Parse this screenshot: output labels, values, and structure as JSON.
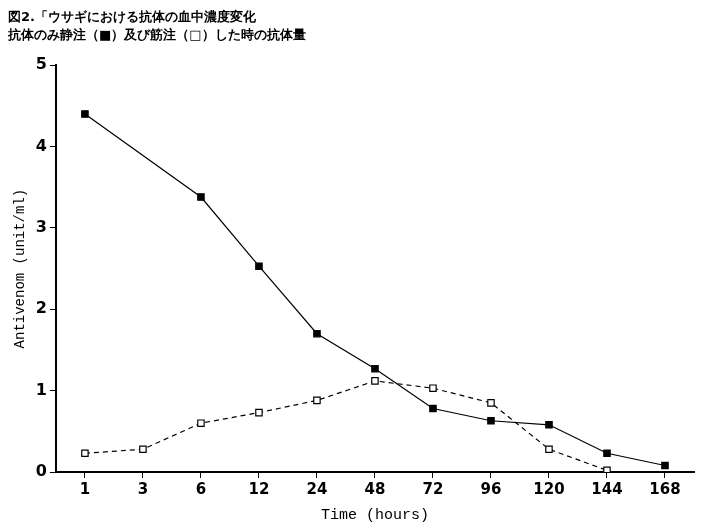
{
  "chart_data": {
    "type": "line",
    "title": "図2.「ウサギにおける抗体の血中濃度変化",
    "subtitle": "抗体のみ静注（■）及び筋注（□）した時の抗体量",
    "x_label": "Time (hours)",
    "y_label": "Antivenom (unit/ml)",
    "categories": [
      "1",
      "3",
      "6",
      "12",
      "24",
      "48",
      "72",
      "96",
      "120",
      "144",
      "168"
    ],
    "series": [
      {
        "color": "#000000",
        "marker": "square",
        "line_style": "solid",
        "values": [
          4.4,
          null,
          3.38,
          2.53,
          1.7,
          1.27,
          0.78,
          0.63,
          0.58,
          0.23,
          0.08
        ]
      },
      {
        "color": "#000000",
        "marker": "open_square",
        "line_style": "dashed",
        "values": [
          0.23,
          0.28,
          0.6,
          0.73,
          0.88,
          1.12,
          1.03,
          0.85,
          0.28,
          0.02,
          null
        ]
      }
    ],
    "ylim": [
      0,
      5
    ],
    "yticks": [
      0,
      1,
      2,
      3,
      4,
      5
    ],
    "grid": false
  }
}
